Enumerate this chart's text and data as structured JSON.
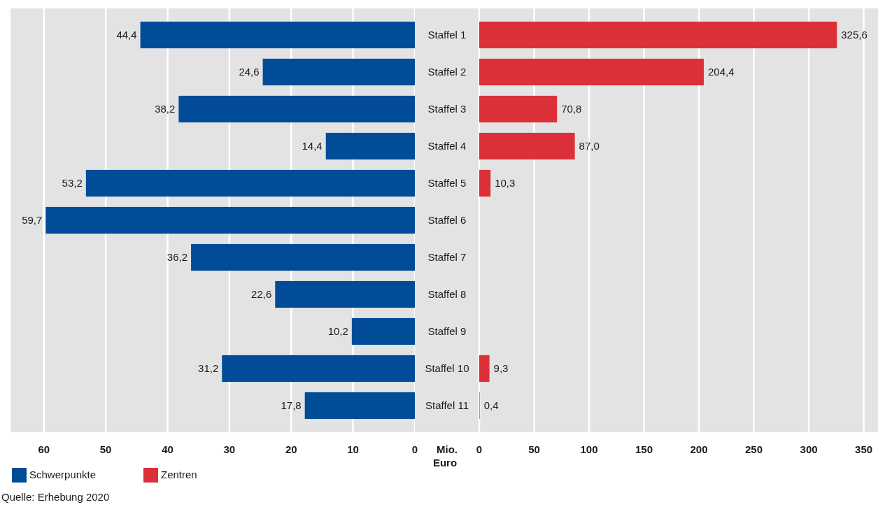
{
  "chart_data": [
    {
      "type": "bar",
      "orientation": "horizontal",
      "categories": [
        null,
        null,
        null,
        null,
        null,
        null,
        null,
        null,
        null,
        null,
        null
      ],
      "xlim": [
        65.4,
        0
      ],
      "xticks": [
        60,
        50,
        40,
        30,
        20,
        10,
        0
      ],
      "grid": "x",
      "legend": "bottom left",
      "tick_labels": "x",
      "series": [
        {
          "name": "Schwerpunkte",
          "color": "#004c97",
          "values": [
            44.4,
            24.6,
            38.2,
            14.4,
            53.2,
            59.7,
            36.2,
            22.6,
            10.2,
            31.2,
            17.8
          ],
          "value_labels": [
            "44,4",
            "24,6",
            "38,2",
            "14,4",
            "53,2",
            "59,7",
            "36,2",
            "22,6",
            "10,2",
            "31,2",
            "17,8"
          ]
        }
      ],
      "annotations": [
        "Quelle: Erhebung 2020"
      ]
    },
    {
      "type": "bar",
      "orientation": "horizontal",
      "categories": [
        "Staffel 1",
        "Staffel 2",
        "Staffel 3",
        "Staffel 4",
        "Staffel 5",
        "Staffel 6",
        "Staffel 7",
        "Staffel 8",
        "Staffel 9",
        "Staffel 10",
        "Staffel 11"
      ],
      "xlim": [
        0,
        363
      ],
      "xticks": [
        0,
        50,
        100,
        150,
        200,
        250,
        300,
        350
      ],
      "xlabel": "Mio. Euro",
      "grid": "x",
      "legend": "bottom left",
      "series": [
        {
          "name": "Zentren",
          "color": "#dc3038",
          "values": [
            325.6,
            204.4,
            70.8,
            87.0,
            10.3,
            null,
            null,
            null,
            null,
            9.3,
            0.4
          ],
          "value_labels": [
            "325,6",
            "204,4",
            "70,8",
            "87,0",
            "10,3",
            null,
            null,
            null,
            null,
            "9,3",
            "0,4"
          ]
        }
      ]
    }
  ]
}
